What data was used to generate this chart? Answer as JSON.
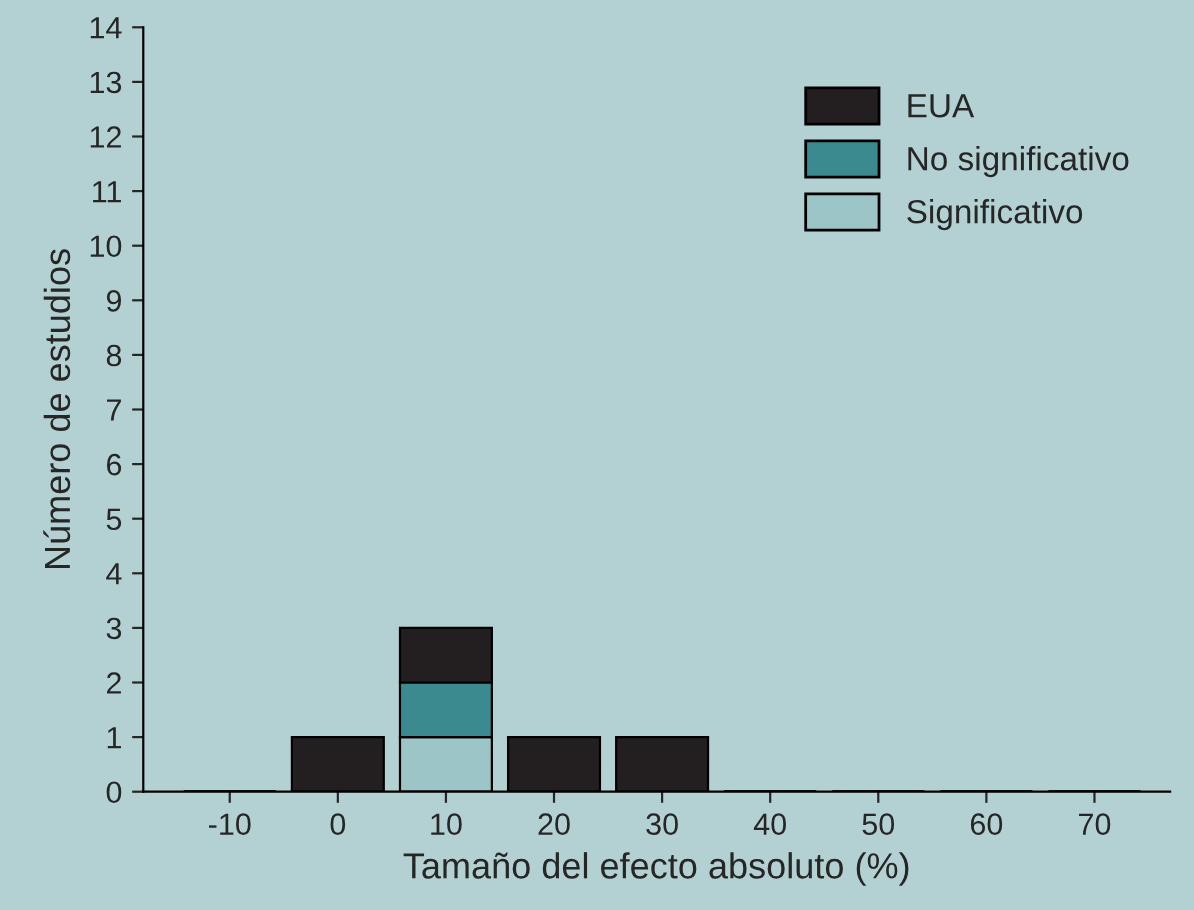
{
  "chart_data": {
    "type": "bar",
    "stacked": true,
    "xlabel": "Tamaño del efecto absoluto (%)",
    "ylabel": "Número de estudios",
    "categories": [
      "-10",
      "0",
      "10",
      "20",
      "30",
      "40",
      "50",
      "60",
      "70"
    ],
    "series": [
      {
        "name": "Significativo",
        "color": "#9cc5c8",
        "values": [
          0,
          0,
          1,
          0,
          0,
          0,
          0,
          0,
          0
        ]
      },
      {
        "name": "No significativo",
        "color": "#3a8a8f",
        "values": [
          0,
          0,
          1,
          0,
          0,
          0,
          0,
          0,
          0
        ]
      },
      {
        "name": "EUA",
        "color": "#231f20",
        "values": [
          0,
          1,
          1,
          1,
          1,
          0,
          0,
          0,
          0
        ]
      }
    ],
    "ylim": [
      0,
      14
    ],
    "yticks": [
      0,
      1,
      2,
      3,
      4,
      5,
      6,
      7,
      8,
      9,
      10,
      11,
      12,
      13,
      14
    ],
    "grid": false,
    "legend": "top right"
  }
}
